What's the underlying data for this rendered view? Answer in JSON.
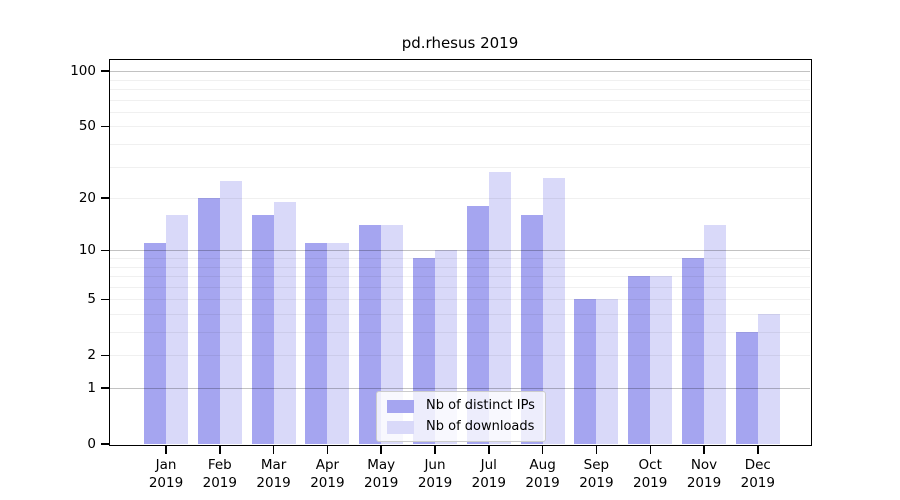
{
  "figure": {
    "title": "pd.rhesus 2019"
  },
  "chart_data": {
    "type": "bar",
    "title": "pd.rhesus 2019",
    "categories": [
      "Jan 2019",
      "Feb 2019",
      "Mar 2019",
      "Apr 2019",
      "May 2019",
      "Jun 2019",
      "Jul 2019",
      "Aug 2019",
      "Sep 2019",
      "Oct 2019",
      "Nov 2019",
      "Dec 2019"
    ],
    "series": [
      {
        "name": "Nb of distinct IPs",
        "color": "#a5a5f0",
        "values": [
          11,
          20,
          16,
          11,
          14,
          9,
          18,
          16,
          5,
          7,
          9,
          3
        ]
      },
      {
        "name": "Nb of downloads",
        "color": "#d9d9f9",
        "values": [
          16,
          25,
          19,
          11,
          14,
          10,
          28,
          26,
          5,
          7,
          14,
          4
        ]
      }
    ],
    "xlabel": "",
    "ylabel": "",
    "y_scale": "log1p",
    "ylim": [
      0,
      115
    ],
    "y_ticks_labeled": [
      100,
      50,
      20,
      10,
      5,
      2,
      1,
      0
    ],
    "y_gridlines_major": [
      100,
      10,
      1
    ],
    "y_gridlines_minor": [
      90,
      80,
      70,
      60,
      50,
      40,
      30,
      20,
      9,
      8,
      7,
      6,
      5,
      4,
      3,
      2
    ],
    "grid": "on",
    "legend_position": "lower center"
  },
  "legend": {
    "items": [
      {
        "label": "Nb of distinct IPs"
      },
      {
        "label": "Nb of downloads"
      }
    ]
  },
  "colors": {
    "bar_distinct_ips": "#a5a5f0",
    "bar_downloads": "#d9d9f9",
    "axis": "#000000",
    "legend_border": "#cccccc"
  }
}
